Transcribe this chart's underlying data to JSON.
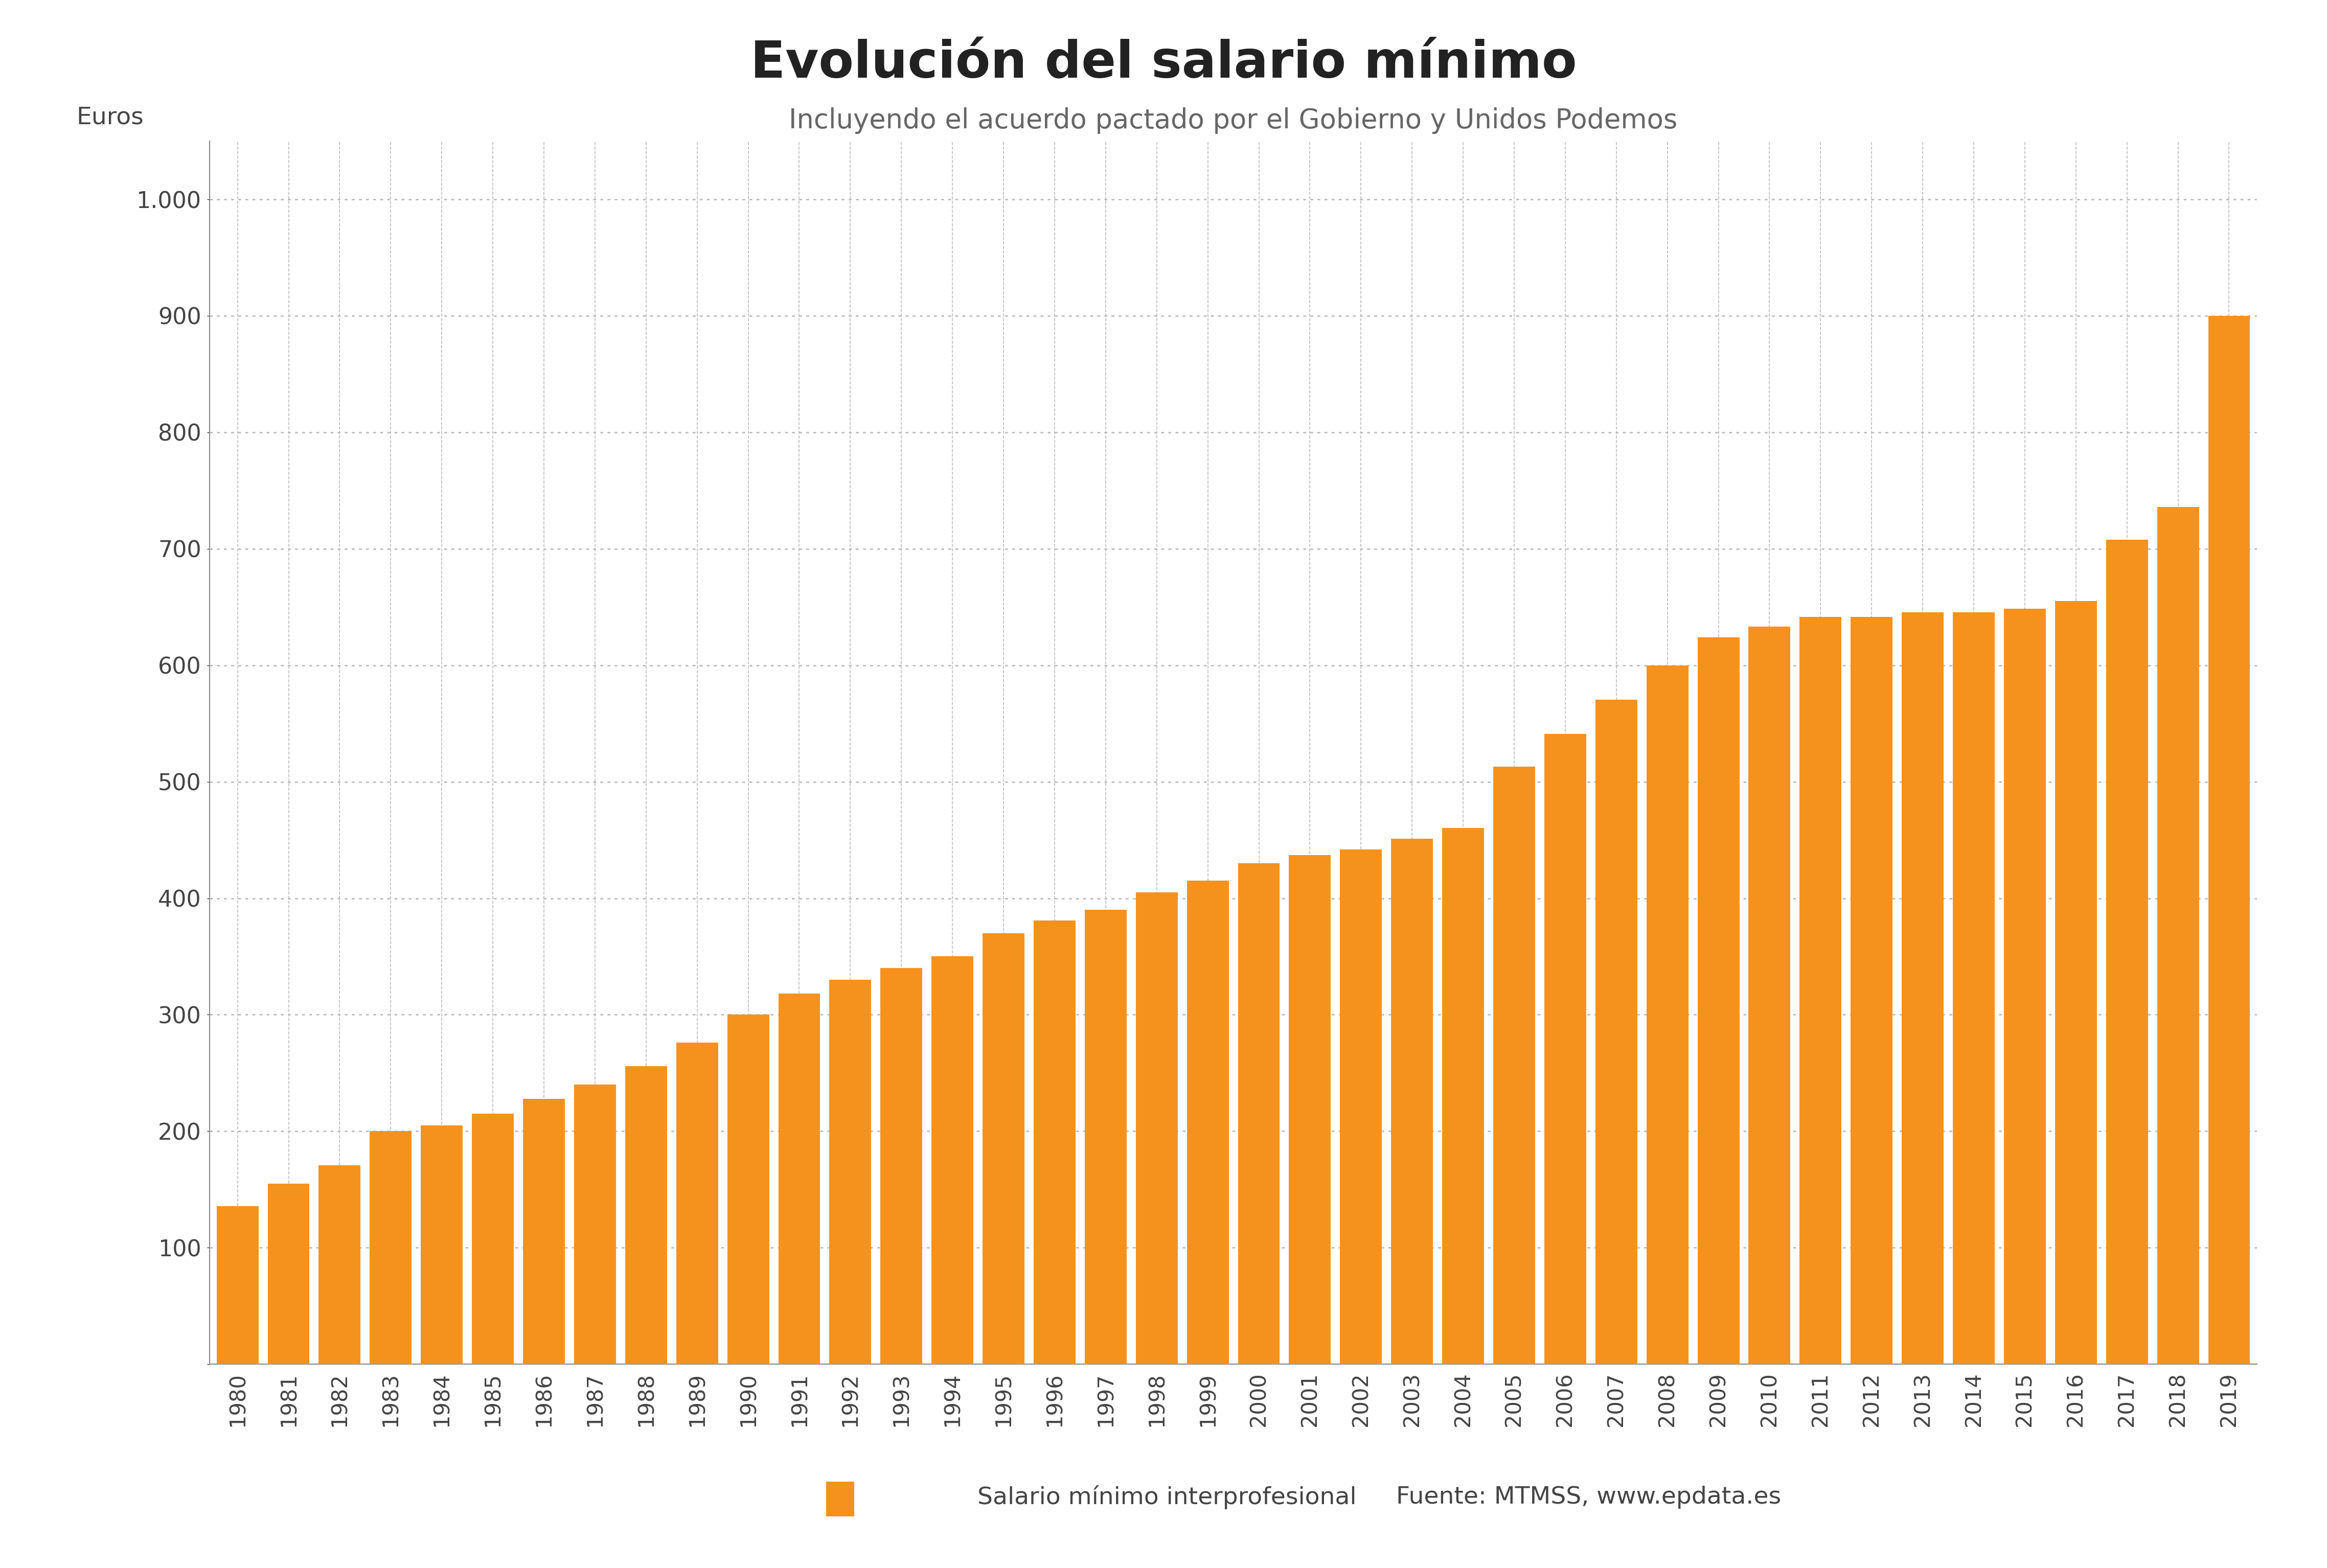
{
  "title": "Evolución del salario mínimo",
  "subtitle": "Incluyendo el acuerdo pactado por el Gobierno y Unidos Podemos",
  "ylabel": "Euros",
  "legend_label": "Salario mínimo interprofesional",
  "source_label": "Fuente: MTMSS, www.epdata.es",
  "bar_color": "#F5921E",
  "background_color": "#ffffff",
  "years": [
    1980,
    1981,
    1982,
    1983,
    1984,
    1985,
    1986,
    1987,
    1988,
    1989,
    1990,
    1991,
    1992,
    1993,
    1994,
    1995,
    1996,
    1997,
    1998,
    1999,
    2000,
    2001,
    2002,
    2003,
    2004,
    2005,
    2006,
    2007,
    2008,
    2009,
    2010,
    2011,
    2012,
    2013,
    2014,
    2015,
    2016,
    2017,
    2018,
    2019
  ],
  "values": [
    135.8,
    155.0,
    170.7,
    200.0,
    205.0,
    215.0,
    228.0,
    240.0,
    256.0,
    276.0,
    300.0,
    318.0,
    330.0,
    340.0,
    350.0,
    370.0,
    381.0,
    390.0,
    405.0,
    415.0,
    430.0,
    437.0,
    442.0,
    451.0,
    460.5,
    513.0,
    540.9,
    570.6,
    600.0,
    624.0,
    633.3,
    641.4,
    641.4,
    645.3,
    645.3,
    648.6,
    655.2,
    707.7,
    735.9,
    900.0
  ],
  "ylim": [
    0,
    1050
  ],
  "yticks": [
    0,
    100,
    200,
    300,
    400,
    500,
    600,
    700,
    800,
    900,
    1000
  ],
  "ytick_labels": [
    "",
    "100",
    "200",
    "300",
    "400",
    "500",
    "600",
    "700",
    "800",
    "900",
    "1.000"
  ],
  "grid_color": "#bbbbbb",
  "title_fontsize": 72,
  "subtitle_fontsize": 38,
  "ylabel_fontsize": 34,
  "tick_fontsize": 32,
  "legend_fontsize": 34,
  "text_color": "#444444"
}
